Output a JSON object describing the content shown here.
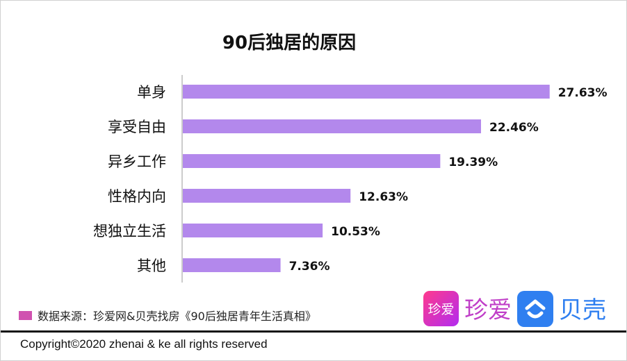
{
  "chart_data": {
    "type": "bar",
    "orientation": "horizontal",
    "title": "90后独居的原因",
    "categories": [
      "单身",
      "享受自由",
      "异乡工作",
      "性格内向",
      "想独立生活",
      "其他"
    ],
    "values": [
      27.63,
      22.46,
      19.39,
      12.63,
      10.53,
      7.36
    ],
    "labels": [
      "27.63%",
      "22.46%",
      "19.39%",
      "12.63%",
      "10.53%",
      "7.36%"
    ],
    "unit": "%",
    "bar_color": "#b388ec",
    "grid": false
  },
  "legend": {
    "text": "数据来源：珍爱网&贝壳找房《90后独居青年生活真相》",
    "color": "#d052b0"
  },
  "logos": {
    "zhenai_icon": "珍爱",
    "zhenai": "珍爱",
    "beike": "贝壳"
  },
  "footer": {
    "copyright": "Copyright©2020 zhenai & ke all rights reserved"
  }
}
